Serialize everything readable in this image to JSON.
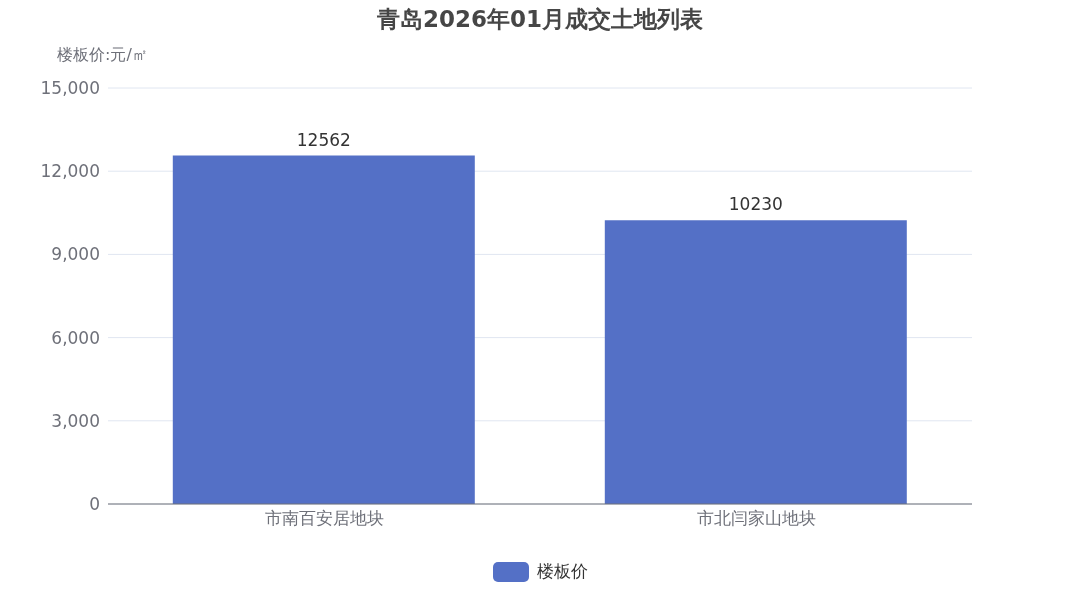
{
  "chart_data": {
    "type": "bar",
    "title": "青岛2026年01月成交土地列表",
    "ylabel": "楼板价:元/㎡",
    "categories": [
      "市南百安居地块",
      "市北闫家山地块"
    ],
    "series": [
      {
        "name": "楼板价",
        "color": "#5470c6",
        "values": [
          12562,
          10230
        ]
      }
    ],
    "ylim": [
      0,
      15000
    ],
    "yticks": [
      {
        "value": 0,
        "label": "0"
      },
      {
        "value": 3000,
        "label": "3,000"
      },
      {
        "value": 6000,
        "label": "6,000"
      },
      {
        "value": 9000,
        "label": "9,000"
      },
      {
        "value": 12000,
        "label": "12,000"
      },
      {
        "value": 15000,
        "label": "15,000"
      }
    ],
    "grid": "y",
    "legend": "bottom",
    "data_labels": true
  }
}
